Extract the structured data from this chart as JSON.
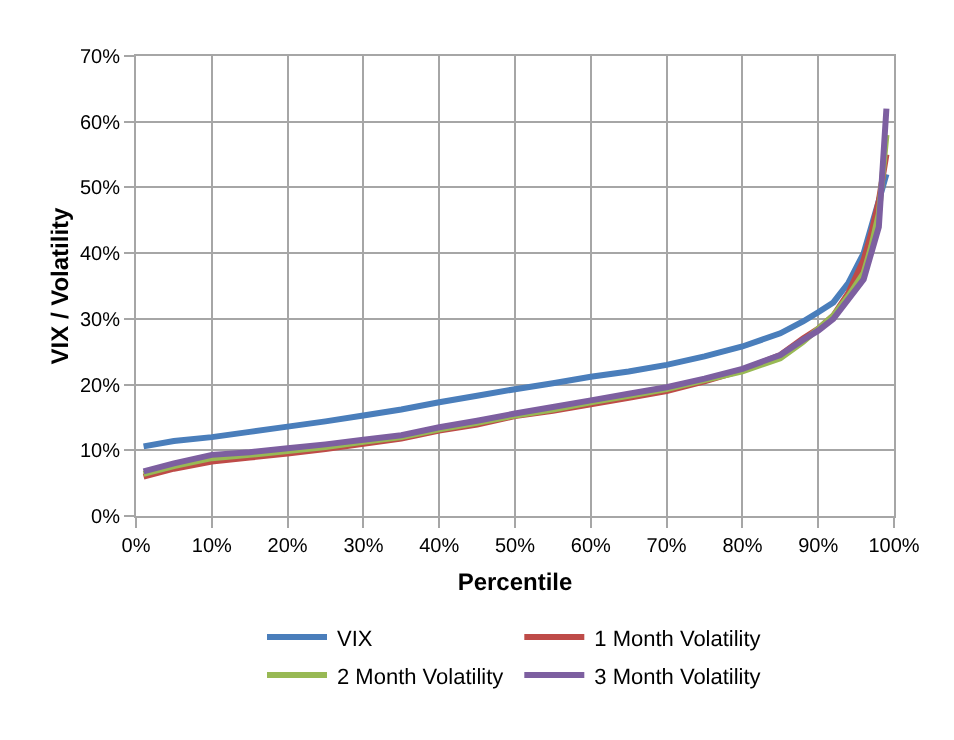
{
  "chart_data": {
    "type": "line",
    "xlabel": "Percentile",
    "ylabel": "VIX / Volatility",
    "x": [
      1,
      5,
      10,
      15,
      20,
      25,
      30,
      35,
      40,
      45,
      50,
      55,
      60,
      65,
      70,
      75,
      80,
      85,
      88,
      90,
      92,
      94,
      96,
      97,
      98,
      99
    ],
    "series": [
      {
        "name": "VIX",
        "color": "#4a7ebb",
        "values": [
          10.6,
          11.4,
          12,
          12.8,
          13.6,
          14.4,
          15.3,
          16.2,
          17.3,
          18.3,
          19.3,
          20.2,
          21.2,
          22,
          23,
          24.3,
          25.8,
          27.8,
          29.6,
          31,
          32.5,
          35.5,
          40,
          44,
          48,
          52
        ]
      },
      {
        "name": "1 Month Volatility",
        "color": "#be4b48",
        "values": [
          6,
          7.2,
          8.3,
          8.9,
          9.5,
          10.2,
          11,
          11.8,
          13,
          13.9,
          15.2,
          16,
          17,
          18,
          19,
          20.5,
          22.2,
          24.5,
          27,
          28.5,
          30.5,
          34,
          39,
          43,
          48,
          55
        ]
      },
      {
        "name": "2 Month Volatility",
        "color": "#98b954",
        "values": [
          6.4,
          7.6,
          8.8,
          9.3,
          9.9,
          10.5,
          11.3,
          12,
          13.2,
          14.2,
          15.3,
          16.2,
          17.3,
          18.3,
          19.3,
          20.7,
          22,
          24,
          26.5,
          28.5,
          30.5,
          33.5,
          37,
          41,
          46,
          58
        ]
      },
      {
        "name": "3 Month Volatility",
        "color": "#7d5fa0",
        "values": [
          6.8,
          8,
          9.3,
          9.7,
          10.3,
          10.9,
          11.6,
          12.3,
          13.5,
          14.5,
          15.6,
          16.6,
          17.6,
          18.6,
          19.6,
          20.9,
          22.4,
          24.5,
          26.8,
          28.2,
          30,
          33,
          36,
          40,
          44,
          62
        ]
      }
    ],
    "xlim": [
      0,
      100
    ],
    "xticks": [
      {
        "value": 0,
        "label": "0%"
      },
      {
        "value": 10,
        "label": "10%"
      },
      {
        "value": 20,
        "label": "20%"
      },
      {
        "value": 30,
        "label": "30%"
      },
      {
        "value": 40,
        "label": "40%"
      },
      {
        "value": 50,
        "label": "50%"
      },
      {
        "value": 60,
        "label": "60%"
      },
      {
        "value": 70,
        "label": "70%"
      },
      {
        "value": 80,
        "label": "80%"
      },
      {
        "value": 90,
        "label": "90%"
      },
      {
        "value": 100,
        "label": "100%"
      }
    ],
    "ylim": [
      0,
      70
    ],
    "yticks": [
      {
        "value": 0,
        "label": "0%"
      },
      {
        "value": 10,
        "label": "10%"
      },
      {
        "value": 20,
        "label": "20%"
      },
      {
        "value": 30,
        "label": "30%"
      },
      {
        "value": 40,
        "label": "40%"
      },
      {
        "value": 50,
        "label": "50%"
      },
      {
        "value": 60,
        "label": "60%"
      },
      {
        "value": 70,
        "label": "70%"
      }
    ],
    "grid": true,
    "legend": "bottom",
    "marker": "none",
    "line_style": "solid"
  }
}
